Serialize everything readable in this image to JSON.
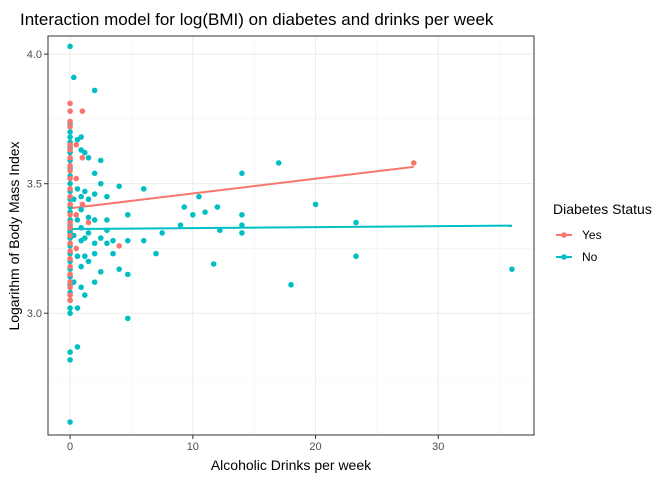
{
  "chart_data": {
    "type": "scatter",
    "title": "Interaction model for log(BMI) on diabetes and drinks per week",
    "xlabel": "Alcoholic Drinks per week",
    "ylabel": "Logarithm of Body Mass Index",
    "xlim": [
      -1.8,
      37.8
    ],
    "ylim": [
      2.53,
      4.07
    ],
    "x_ticks": [
      0,
      10,
      20,
      30
    ],
    "y_ticks": [
      3.0,
      3.5,
      4.0
    ],
    "y_tick_labels": [
      "3.0",
      "3.5",
      "4.0"
    ],
    "grid": true,
    "legend": {
      "title": "Diabetes Status",
      "placement": "right"
    },
    "series": [
      {
        "name": "Yes",
        "color": "#F8766D",
        "points": [
          [
            0,
            3.81
          ],
          [
            0,
            3.78
          ],
          [
            0,
            3.74
          ],
          [
            0,
            3.72
          ],
          [
            0,
            3.65
          ],
          [
            0,
            3.63
          ],
          [
            0,
            3.6
          ],
          [
            0,
            3.57
          ],
          [
            0,
            3.55
          ],
          [
            0,
            3.52
          ],
          [
            0,
            3.48
          ],
          [
            0,
            3.45
          ],
          [
            0,
            3.42
          ],
          [
            0,
            3.38
          ],
          [
            0,
            3.35
          ],
          [
            0,
            3.33
          ],
          [
            0,
            3.3
          ],
          [
            0,
            3.27
          ],
          [
            0,
            3.24
          ],
          [
            0,
            3.21
          ],
          [
            0,
            3.18
          ],
          [
            0,
            3.15
          ],
          [
            0,
            3.12
          ],
          [
            0,
            3.1
          ],
          [
            0,
            3.07
          ],
          [
            0,
            3.05
          ],
          [
            0.5,
            3.65
          ],
          [
            0.5,
            3.52
          ],
          [
            0.5,
            3.38
          ],
          [
            0.5,
            3.25
          ],
          [
            1,
            3.78
          ],
          [
            1,
            3.6
          ],
          [
            1,
            3.42
          ],
          [
            1.5,
            3.35
          ],
          [
            4,
            3.26
          ],
          [
            28,
            3.58
          ]
        ],
        "fit": {
          "x": [
            0,
            28
          ],
          "y": [
            3.405,
            3.565
          ]
        }
      },
      {
        "name": "No",
        "color": "#00BFC4",
        "points": [
          [
            0,
            4.03
          ],
          [
            0,
            3.73
          ],
          [
            0,
            3.7
          ],
          [
            0,
            3.68
          ],
          [
            0,
            3.66
          ],
          [
            0,
            3.64
          ],
          [
            0,
            3.62
          ],
          [
            0,
            3.59
          ],
          [
            0,
            3.56
          ],
          [
            0,
            3.53
          ],
          [
            0,
            3.5
          ],
          [
            0,
            3.47
          ],
          [
            0,
            3.44
          ],
          [
            0,
            3.41
          ],
          [
            0,
            3.39
          ],
          [
            0,
            3.36
          ],
          [
            0,
            3.34
          ],
          [
            0,
            3.32
          ],
          [
            0,
            3.31
          ],
          [
            0,
            3.29
          ],
          [
            0,
            3.26
          ],
          [
            0,
            3.23
          ],
          [
            0,
            3.2
          ],
          [
            0,
            3.17
          ],
          [
            0,
            3.14
          ],
          [
            0,
            3.11
          ],
          [
            0,
            3.08
          ],
          [
            0,
            3.05
          ],
          [
            0,
            3.02
          ],
          [
            0,
            3.0
          ],
          [
            0,
            2.85
          ],
          [
            0,
            2.82
          ],
          [
            0,
            2.58
          ],
          [
            0.3,
            3.91
          ],
          [
            0.3,
            3.44
          ],
          [
            0.3,
            3.3
          ],
          [
            0.3,
            3.12
          ],
          [
            0.6,
            3.67
          ],
          [
            0.6,
            3.48
          ],
          [
            0.6,
            3.36
          ],
          [
            0.6,
            3.22
          ],
          [
            0.6,
            3.02
          ],
          [
            0.6,
            2.87
          ],
          [
            0.9,
            3.68
          ],
          [
            0.9,
            3.63
          ],
          [
            0.9,
            3.45
          ],
          [
            0.9,
            3.4
          ],
          [
            0.9,
            3.33
          ],
          [
            0.9,
            3.28
          ],
          [
            0.9,
            3.18
          ],
          [
            0.9,
            3.1
          ],
          [
            1.2,
            3.62
          ],
          [
            1.2,
            3.47
          ],
          [
            1.2,
            3.29
          ],
          [
            1.2,
            3.22
          ],
          [
            1.2,
            3.07
          ],
          [
            1.5,
            3.6
          ],
          [
            1.5,
            3.44
          ],
          [
            1.5,
            3.37
          ],
          [
            1.5,
            3.31
          ],
          [
            1.5,
            3.2
          ],
          [
            2,
            3.86
          ],
          [
            2,
            3.54
          ],
          [
            2,
            3.46
          ],
          [
            2,
            3.36
          ],
          [
            2,
            3.27
          ],
          [
            2,
            3.23
          ],
          [
            2,
            3.12
          ],
          [
            2.5,
            3.59
          ],
          [
            2.5,
            3.5
          ],
          [
            2.5,
            3.29
          ],
          [
            2.5,
            3.16
          ],
          [
            3,
            3.45
          ],
          [
            3,
            3.36
          ],
          [
            3,
            3.32
          ],
          [
            3,
            3.27
          ],
          [
            3.5,
            3.28
          ],
          [
            3.5,
            3.23
          ],
          [
            4,
            3.49
          ],
          [
            4,
            3.17
          ],
          [
            4.7,
            3.38
          ],
          [
            4.7,
            3.28
          ],
          [
            4.7,
            3.15
          ],
          [
            4.7,
            2.98
          ],
          [
            6,
            3.48
          ],
          [
            6,
            3.28
          ],
          [
            7,
            3.23
          ],
          [
            7.5,
            3.31
          ],
          [
            9,
            3.34
          ],
          [
            9.3,
            3.41
          ],
          [
            10,
            3.38
          ],
          [
            10.5,
            3.45
          ],
          [
            11,
            3.39
          ],
          [
            11.7,
            3.19
          ],
          [
            12,
            3.41
          ],
          [
            12.2,
            3.32
          ],
          [
            14,
            3.54
          ],
          [
            14,
            3.38
          ],
          [
            14,
            3.34
          ],
          [
            14,
            3.31
          ],
          [
            17,
            3.58
          ],
          [
            18,
            3.11
          ],
          [
            20,
            3.42
          ],
          [
            23.3,
            3.35
          ],
          [
            23.3,
            3.22
          ],
          [
            36,
            3.17
          ]
        ],
        "fit": {
          "x": [
            0,
            36
          ],
          "y": [
            3.325,
            3.338
          ]
        }
      }
    ]
  }
}
